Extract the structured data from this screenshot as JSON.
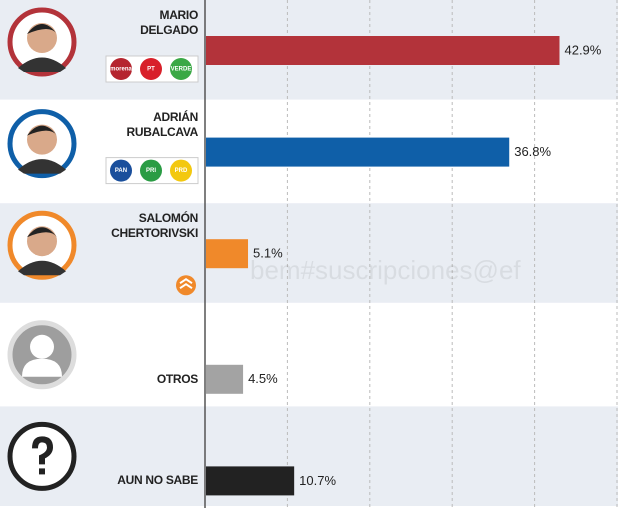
{
  "chart_data": {
    "type": "bar",
    "orientation": "horizontal",
    "categories": [
      "MARIO DELGADO",
      "ADRIÁN RUBALCAVA",
      "SALOMÓN CHERTORIVSKI",
      "OTROS",
      "AUN NO SABE"
    ],
    "values": [
      42.9,
      36.8,
      5.1,
      4.5,
      10.7
    ],
    "value_labels": [
      "42.9%",
      "36.8%",
      "5.1%",
      "4.5%",
      "10.7%"
    ],
    "colors": [
      "#b3333a",
      "#0f5fa8",
      "#f0892a",
      "#a3a3a3",
      "#222222"
    ],
    "parties": [
      [
        "morena",
        "PT",
        "VERDE"
      ],
      [
        "PAN",
        "PRI",
        "PRD"
      ],
      []
    ],
    "xlim": [
      0,
      50
    ],
    "xticks": [
      0,
      10,
      20,
      30,
      40,
      50
    ],
    "grid": true,
    "watermark": "bem#suscripciones@ef"
  }
}
